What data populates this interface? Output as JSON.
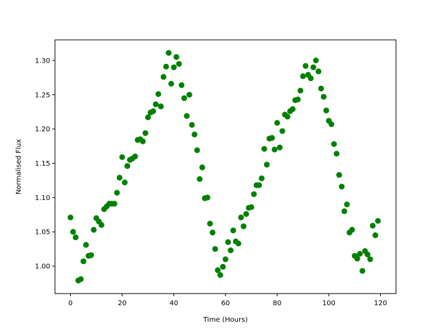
{
  "chart_data": {
    "type": "scatter",
    "title": "",
    "xlabel": "Time (Hours)",
    "ylabel": "Normalised Flux",
    "xlim": [
      -6,
      126
    ],
    "ylim": [
      0.96,
      1.33
    ],
    "xticks": [
      0,
      20,
      40,
      60,
      80,
      100,
      120
    ],
    "yticks": [
      1.0,
      1.05,
      1.1,
      1.15,
      1.2,
      1.25,
      1.3
    ],
    "grid": false,
    "marker_color": "#008000",
    "series": [
      {
        "x": [
          0,
          1,
          2,
          3,
          4,
          5,
          6,
          7,
          8,
          9,
          10,
          11,
          12,
          13,
          14,
          15,
          16,
          17,
          18,
          19,
          20,
          21,
          22,
          23,
          24,
          25,
          26,
          27,
          28,
          29,
          30,
          31,
          32,
          33,
          34,
          35,
          36,
          37,
          38,
          39,
          40,
          41,
          42,
          43,
          44,
          45,
          46,
          47,
          48,
          49,
          50,
          51,
          52,
          53,
          54,
          55,
          56,
          57,
          58,
          59,
          60,
          61,
          62,
          63,
          64,
          65,
          66,
          67,
          68,
          69,
          70,
          71,
          72,
          73,
          74,
          75,
          76,
          77,
          78,
          79,
          80,
          81,
          82,
          83,
          84,
          85,
          86,
          87,
          88,
          89,
          90,
          91,
          92,
          93,
          94,
          95,
          96,
          97,
          98,
          99,
          100,
          101,
          102,
          103,
          104,
          105,
          106,
          107,
          108,
          109,
          110,
          111,
          112,
          113,
          114,
          115,
          116,
          117,
          118,
          119
        ],
        "y": [
          1.071,
          1.05,
          1.042,
          0.979,
          0.981,
          1.007,
          1.031,
          1.015,
          1.016,
          1.053,
          1.07,
          1.065,
          1.06,
          1.083,
          1.087,
          1.091,
          1.091,
          1.091,
          1.107,
          1.129,
          1.159,
          1.122,
          1.146,
          1.155,
          1.157,
          1.16,
          1.184,
          1.185,
          1.182,
          1.194,
          1.217,
          1.224,
          1.226,
          1.236,
          1.251,
          1.233,
          1.276,
          1.291,
          1.311,
          1.266,
          1.29,
          1.305,
          1.295,
          1.264,
          1.245,
          1.219,
          1.25,
          1.206,
          1.192,
          1.169,
          1.127,
          1.144,
          1.099,
          1.1,
          1.062,
          1.049,
          1.025,
          0.994,
          0.987,
          0.999,
          1.01,
          1.035,
          1.023,
          1.052,
          1.036,
          1.033,
          1.071,
          1.058,
          1.076,
          1.085,
          1.086,
          1.105,
          1.118,
          1.118,
          1.128,
          1.171,
          1.148,
          1.186,
          1.187,
          1.17,
          1.209,
          1.173,
          1.197,
          1.221,
          1.218,
          1.226,
          1.229,
          1.242,
          1.243,
          1.256,
          1.277,
          1.292,
          1.279,
          1.274,
          1.29,
          1.3,
          1.284,
          1.259,
          1.247,
          1.227,
          1.212,
          1.207,
          1.178,
          1.164,
          1.133,
          1.116,
          1.08,
          1.09,
          1.049,
          1.053,
          1.015,
          1.011,
          1.018,
          0.993,
          1.022,
          1.017,
          1.01,
          1.059,
          1.045,
          1.066
        ]
      }
    ]
  }
}
